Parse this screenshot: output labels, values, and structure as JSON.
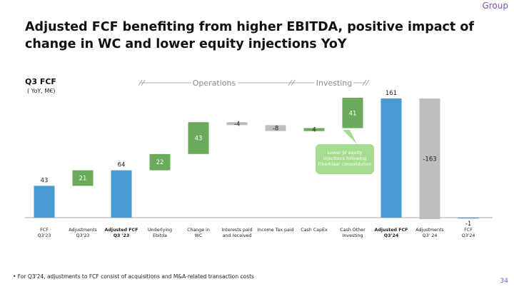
{
  "header": {
    "brand": "Group"
  },
  "sections": [
    "Operations",
    "Investing"
  ],
  "chart_data": {
    "type": "waterfall",
    "title": "Adjusted FCF benefiting from higher EBITDA, positive impact of change in WC and lower equity injections YoY",
    "subtitle": "Q3 FCF",
    "unit": "( YoY, M€)",
    "categories": [
      "FCF\nQ3'23",
      "Adjustments\nQ3'23",
      "Adjusted FCF\nQ3 '23",
      "Underlying\nEbitda",
      "Change in\nWC",
      "Interests paid\nand received",
      "Income Tax paid",
      "Cash CapEx",
      "Cash Other\nInvesting",
      "Adjusted FCF\nQ3'24",
      "Adjustments\nQ3' 24",
      "FCF\nQ3'24"
    ],
    "values": [
      43,
      21,
      64,
      22,
      43,
      -4,
      -8,
      4,
      41,
      161,
      -163,
      -1
    ],
    "kinds": [
      "total",
      "delta",
      "total",
      "delta",
      "delta",
      "delta",
      "delta",
      "delta",
      "delta",
      "total",
      "delta",
      "total"
    ],
    "bold_categories": [
      2,
      9
    ],
    "colors": {
      "total": "#4a9bd4",
      "increase": "#6aaa5a",
      "decrease": "#bdbdbd"
    },
    "annotation": "Lower JV equity injections following Fiberklaar consolidation"
  },
  "footer": {
    "note": "• For Q3'24, adjustments to FCF consist of acquisitions and M&A-related transaction costs",
    "page": "34"
  }
}
